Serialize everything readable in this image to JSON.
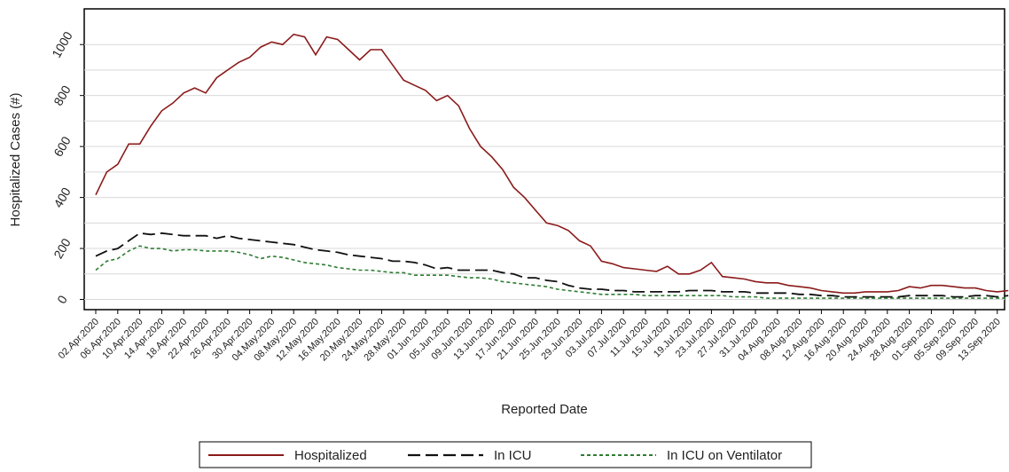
{
  "chart_data": {
    "type": "line",
    "y_label": "Hospitalized Cases (#)",
    "x_label": "Reported Date",
    "categories": [
      "02.Apr.2020",
      null,
      "06.Apr.2020",
      null,
      "10.Apr.2020",
      null,
      "14.Apr.2020",
      null,
      "18.Apr.2020",
      null,
      "22.Apr.2020",
      null,
      "26.Apr.2020",
      null,
      "30.Apr.2020",
      null,
      "04.May.2020",
      null,
      "08.May.2020",
      null,
      "12.May.2020",
      null,
      "16.May.2020",
      null,
      "20.May.2020",
      null,
      "24.May.2020",
      null,
      "28.May.2020",
      null,
      "01.Jun.2020",
      null,
      "05.Jun.2020",
      null,
      "09.Jun.2020",
      null,
      "13.Jun.2020",
      null,
      "17.Jun.2020",
      null,
      "21.Jun.2020",
      null,
      "25.Jun.2020",
      null,
      "29.Jun.2020",
      null,
      "03.Jul.2020",
      null,
      "07.Jul.2020",
      null,
      "11.Jul.2020",
      null,
      "15.Jul.2020",
      null,
      "19.Jul.2020",
      null,
      "23.Jul.2020",
      null,
      "27.Jul.2020",
      null,
      "31.Jul.2020",
      null,
      "04.Aug.2020",
      null,
      "08.Aug.2020",
      null,
      "12.Aug.2020",
      null,
      "16.Aug.2020",
      null,
      "20.Aug.2020",
      null,
      "24.Aug.2020",
      null,
      "28.Aug.2020",
      null,
      "01.Sep.2020",
      null,
      "05.Sep.2020",
      null,
      "09.Sep.2020",
      null,
      "13.Sep.2020",
      null
    ],
    "series": [
      {
        "name": "Hospitalized",
        "color": "#8b1a1a",
        "dash": "solid",
        "values": [
          410,
          500,
          530,
          610,
          610,
          680,
          740,
          770,
          810,
          830,
          810,
          870,
          900,
          930,
          950,
          990,
          1010,
          1000,
          1040,
          1030,
          960,
          1030,
          1020,
          980,
          940,
          980,
          980,
          920,
          860,
          840,
          820,
          780,
          800,
          760,
          670,
          600,
          560,
          510,
          440,
          400,
          350,
          300,
          290,
          270,
          230,
          210,
          150,
          140,
          125,
          120,
          115,
          110,
          130,
          100,
          100,
          115,
          145,
          90,
          85,
          80,
          70,
          65,
          65,
          55,
          50,
          45,
          35,
          30,
          25,
          25,
          30,
          30,
          30,
          35,
          50,
          45,
          55,
          55,
          50,
          45,
          45,
          35,
          30,
          35
        ]
      },
      {
        "name": "In ICU",
        "color": "#111111",
        "dash": "long-dash",
        "values": [
          170,
          190,
          200,
          230,
          260,
          255,
          260,
          255,
          250,
          250,
          250,
          240,
          250,
          240,
          235,
          230,
          225,
          220,
          215,
          205,
          195,
          190,
          185,
          175,
          170,
          165,
          160,
          150,
          150,
          145,
          135,
          120,
          125,
          115,
          115,
          115,
          115,
          105,
          100,
          85,
          85,
          75,
          70,
          55,
          45,
          40,
          40,
          35,
          35,
          30,
          30,
          30,
          30,
          30,
          35,
          35,
          35,
          30,
          30,
          30,
          25,
          25,
          25,
          25,
          20,
          20,
          15,
          15,
          10,
          10,
          10,
          10,
          10,
          10,
          15,
          15,
          15,
          15,
          10,
          10,
          15,
          15,
          10,
          15
        ]
      },
      {
        "name": "In ICU on Ventilator",
        "color": "#2e7d32",
        "dash": "short-dash",
        "values": [
          115,
          150,
          160,
          190,
          210,
          200,
          200,
          190,
          195,
          195,
          190,
          190,
          190,
          185,
          175,
          160,
          170,
          165,
          155,
          145,
          140,
          135,
          125,
          120,
          115,
          115,
          110,
          105,
          105,
          95,
          95,
          95,
          95,
          90,
          85,
          85,
          80,
          70,
          65,
          60,
          55,
          50,
          40,
          35,
          30,
          25,
          20,
          20,
          20,
          20,
          15,
          15,
          15,
          15,
          15,
          15,
          15,
          15,
          10,
          10,
          10,
          5,
          5,
          5,
          5,
          5,
          5,
          5,
          5,
          5,
          5,
          5,
          5,
          5,
          5,
          5,
          5,
          5,
          5,
          5,
          5,
          5,
          5,
          5
        ]
      }
    ],
    "ylim": [
      -40,
      1140
    ],
    "yticks": [
      0,
      200,
      400,
      600,
      800,
      1000
    ],
    "ygrid": [
      0,
      100,
      200,
      300,
      400,
      500,
      600,
      700,
      800,
      900,
      1000
    ],
    "grid": true,
    "legend": "bottom"
  }
}
